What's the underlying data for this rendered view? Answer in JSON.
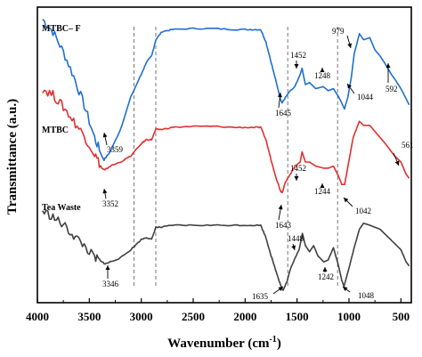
{
  "chart_data": {
    "type": "line",
    "title": "",
    "xlabel": "Wavenumber (cm",
    "xlabel_sup": "-1",
    "xlabel_close": ")",
    "ylabel": "Transmittance (a.u.)",
    "xlim": [
      4000,
      400
    ],
    "x_reversed": true,
    "x_ticks": [
      "4000",
      "3500",
      "3000",
      "2500",
      "2000",
      "1500",
      "1000",
      "500"
    ],
    "y_ticks_shown": false,
    "grid": false,
    "reference_lines": [
      3070,
      2860,
      1590,
      1110
    ],
    "series": [
      {
        "name": "MTBC– F",
        "color": "#1f6fd0",
        "x": [
          3950,
          3850,
          3750,
          3650,
          3550,
          3450,
          3380,
          3359,
          3300,
          3200,
          3100,
          3000,
          2950,
          2900,
          2860,
          2800,
          2700,
          2500,
          2300,
          2100,
          1950,
          1850,
          1800,
          1750,
          1700,
          1660,
          1645,
          1620,
          1580,
          1520,
          1470,
          1452,
          1420,
          1380,
          1320,
          1248,
          1200,
          1150,
          1100,
          1070,
          1044,
          1010,
          979,
          950,
          900,
          860,
          800,
          750,
          700,
          650,
          592,
          550,
          500,
          450,
          420
        ],
        "y": [
          94,
          88,
          78,
          66,
          52,
          36,
          27,
          25,
          29,
          40,
          56,
          67,
          73,
          76,
          84,
          88,
          89,
          89.5,
          89.5,
          89,
          89,
          89,
          83,
          73,
          63,
          55,
          53,
          55,
          58,
          61,
          67,
          70,
          62,
          63,
          60,
          61,
          59,
          60,
          56,
          53,
          50,
          56,
          65,
          77,
          87,
          84,
          85,
          79,
          76,
          72,
          67,
          64,
          60,
          55,
          52
        ]
      },
      {
        "name": "MTBC",
        "color": "#e03030",
        "x": [
          3950,
          3850,
          3750,
          3650,
          3550,
          3450,
          3380,
          3352,
          3300,
          3200,
          3100,
          3000,
          2950,
          2900,
          2860,
          2800,
          2700,
          2500,
          2300,
          2100,
          1950,
          1850,
          1800,
          1750,
          1700,
          1660,
          1643,
          1620,
          1580,
          1520,
          1470,
          1452,
          1420,
          1380,
          1320,
          1244,
          1200,
          1150,
          1100,
          1070,
          1042,
          1010,
          960,
          900,
          860,
          800,
          750,
          700,
          650,
          561,
          500,
          450,
          420
        ],
        "y": [
          60,
          57,
          51,
          44,
          37,
          28,
          21,
          20,
          22,
          24,
          27,
          33,
          35,
          35,
          40,
          40,
          41,
          41.5,
          41.5,
          41,
          41,
          41,
          35,
          25,
          16,
          10,
          9,
          13,
          17,
          22,
          24,
          29,
          24,
          24,
          22,
          21,
          21,
          22,
          17,
          13,
          13,
          22,
          36,
          44,
          42,
          42,
          39,
          36,
          33,
          27,
          24,
          18,
          16
        ]
      },
      {
        "name": "Tea Waste",
        "color": "#404040",
        "x": [
          3950,
          3850,
          3750,
          3650,
          3550,
          3450,
          3380,
          3346,
          3300,
          3200,
          3100,
          3000,
          2950,
          2900,
          2860,
          2800,
          2700,
          2500,
          2300,
          2100,
          1950,
          1850,
          1800,
          1750,
          1700,
          1660,
          1635,
          1600,
          1560,
          1520,
          1480,
          1448,
          1420,
          1380,
          1340,
          1300,
          1242,
          1200,
          1150,
          1100,
          1070,
          1048,
          1000,
          950,
          900,
          860,
          800,
          700,
          600,
          500,
          450,
          420
        ],
        "y": [
          0,
          -3,
          -7,
          -12,
          -17,
          -23,
          -25,
          -26,
          -25,
          -23,
          -19,
          -14,
          -13,
          -14,
          -8,
          -8,
          -7,
          -7,
          -7,
          -7,
          -7,
          -7,
          -13,
          -22,
          -30,
          -36,
          -39,
          -35,
          -28,
          -23,
          -19,
          -11,
          -17,
          -20,
          -17,
          -22,
          -25,
          -24,
          -18,
          -27,
          -34,
          -37,
          -28,
          -18,
          -9,
          -6,
          -7,
          -9,
          -14,
          -19,
          -25,
          -27
        ]
      }
    ],
    "annotations": [
      {
        "text": "3359"
      },
      {
        "text": "1645"
      },
      {
        "text": "1452"
      },
      {
        "text": "1248"
      },
      {
        "text": "979"
      },
      {
        "text": "1044"
      },
      {
        "text": "592"
      },
      {
        "text": "3352"
      },
      {
        "text": "1643"
      },
      {
        "text": "1452"
      },
      {
        "text": "1244"
      },
      {
        "text": "561"
      },
      {
        "text": "1042"
      },
      {
        "text": "3346"
      },
      {
        "text": "1635"
      },
      {
        "text": "1448"
      },
      {
        "text": "1242"
      },
      {
        "text": "1048"
      }
    ]
  }
}
